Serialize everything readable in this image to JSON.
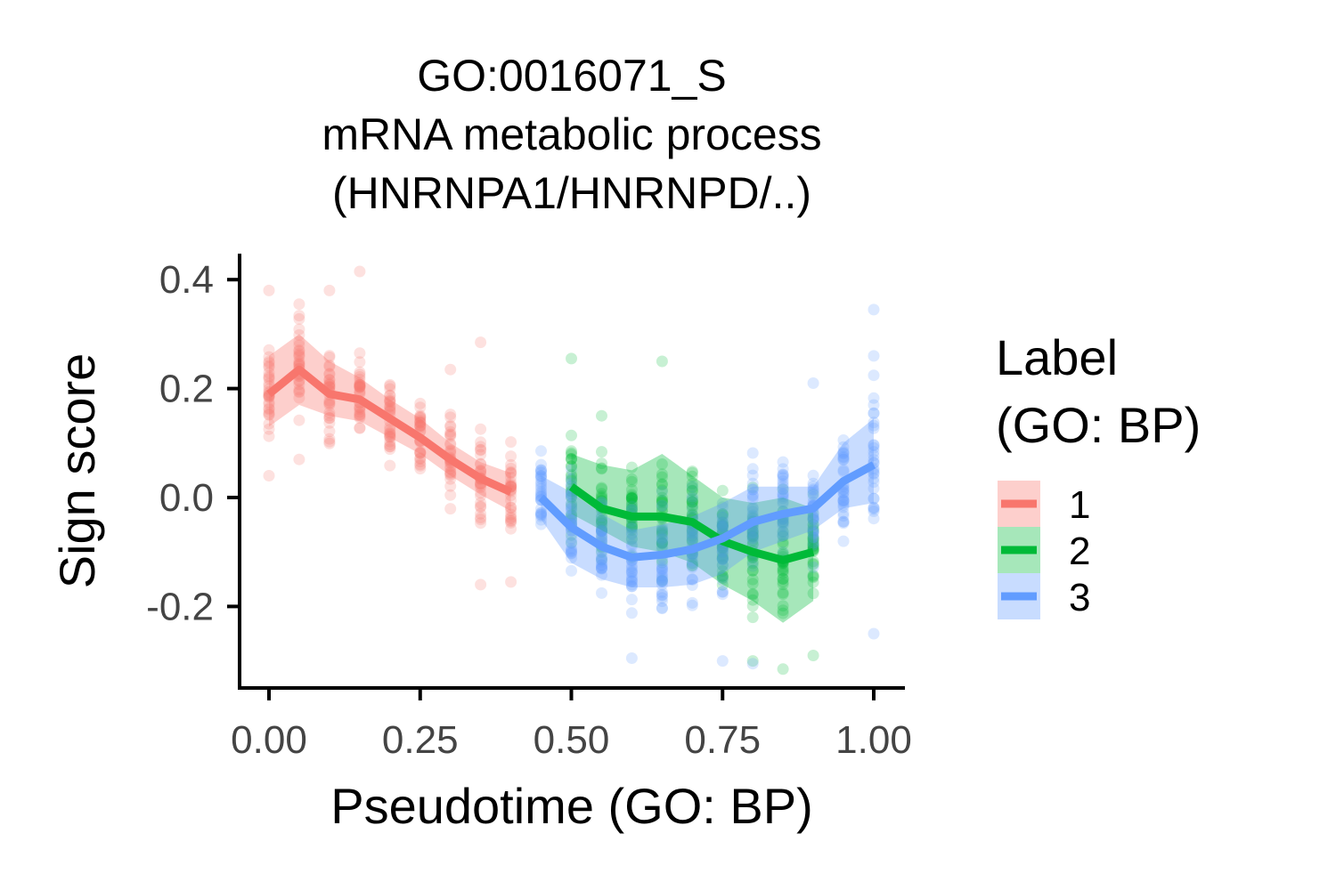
{
  "chart_data": {
    "type": "scatter",
    "title": [
      "GO:0016071_S",
      "mRNA metabolic process",
      "(HNRNPA1/HNRNPD/..)"
    ],
    "xlabel": "Pseudotime (GO: BP)",
    "ylabel": "Sign score",
    "xlim": [
      -0.05,
      1.05
    ],
    "ylim": [
      -0.35,
      0.45
    ],
    "x_ticks": [
      0.0,
      0.25,
      0.5,
      0.75,
      1.0
    ],
    "x_tick_labels": [
      "0.00",
      "0.25",
      "0.50",
      "0.75",
      "1.00"
    ],
    "y_ticks": [
      -0.2,
      0.0,
      0.2,
      0.4
    ],
    "y_tick_labels": [
      "-0.2",
      "0.0",
      "0.2",
      "0.4"
    ],
    "grid": false,
    "legend": {
      "title": [
        "Label",
        "(GO: BP)"
      ],
      "placement": "right",
      "entries": [
        "1",
        "2",
        "3"
      ]
    },
    "series": [
      {
        "name": "1",
        "color": "#F8766D",
        "x": [
          0.0,
          0.05,
          0.1,
          0.15,
          0.2,
          0.25,
          0.3,
          0.35,
          0.4
        ],
        "mean": [
          0.19,
          0.235,
          0.19,
          0.18,
          0.145,
          0.11,
          0.07,
          0.035,
          0.01
        ],
        "lower": [
          0.13,
          0.17,
          0.15,
          0.14,
          0.11,
          0.08,
          0.04,
          0.005,
          -0.025
        ],
        "upper": [
          0.26,
          0.3,
          0.25,
          0.22,
          0.18,
          0.145,
          0.1,
          0.065,
          0.045
        ],
        "spread": [
          0.09,
          0.08,
          0.07,
          0.07,
          0.07,
          0.07,
          0.08,
          0.09,
          0.08
        ],
        "extremes": [
          [
            0.0,
            0.38
          ],
          [
            0.0,
            0.04
          ],
          [
            0.05,
            0.355
          ],
          [
            0.05,
            0.07
          ],
          [
            0.15,
            0.415
          ],
          [
            0.1,
            0.38
          ],
          [
            0.35,
            0.285
          ],
          [
            0.35,
            -0.16
          ],
          [
            0.4,
            -0.155
          ],
          [
            0.3,
            0.235
          ]
        ]
      },
      {
        "name": "2",
        "color": "#00BA38",
        "x": [
          0.5,
          0.55,
          0.6,
          0.65,
          0.7,
          0.75,
          0.8,
          0.85,
          0.9
        ],
        "mean": [
          0.02,
          -0.02,
          -0.035,
          -0.035,
          -0.045,
          -0.08,
          -0.1,
          -0.115,
          -0.1
        ],
        "lower": [
          -0.03,
          -0.06,
          -0.09,
          -0.1,
          -0.12,
          -0.16,
          -0.19,
          -0.23,
          -0.19
        ],
        "upper": [
          0.08,
          0.06,
          0.05,
          0.08,
          0.04,
          0.0,
          -0.01,
          0.0,
          -0.02
        ],
        "spread": [
          0.08,
          0.09,
          0.09,
          0.1,
          0.1,
          0.1,
          0.1,
          0.1,
          0.1
        ],
        "extremes": [
          [
            0.5,
            0.255
          ],
          [
            0.65,
            0.25
          ],
          [
            0.85,
            -0.315
          ],
          [
            0.9,
            -0.29
          ],
          [
            0.55,
            0.15
          ],
          [
            0.8,
            -0.3
          ]
        ]
      },
      {
        "name": "3",
        "color": "#619CFF",
        "x": [
          0.45,
          0.5,
          0.55,
          0.6,
          0.65,
          0.7,
          0.75,
          0.8,
          0.85,
          0.9,
          0.95,
          1.0
        ],
        "mean": [
          0.0,
          -0.055,
          -0.09,
          -0.11,
          -0.105,
          -0.095,
          -0.075,
          -0.045,
          -0.03,
          -0.02,
          0.03,
          0.06
        ],
        "lower": [
          -0.04,
          -0.12,
          -0.15,
          -0.165,
          -0.165,
          -0.16,
          -0.14,
          -0.1,
          -0.08,
          -0.06,
          -0.02,
          -0.01
        ],
        "upper": [
          0.04,
          0.01,
          -0.03,
          -0.06,
          -0.05,
          -0.035,
          -0.01,
          0.02,
          0.02,
          0.02,
          0.1,
          0.145
        ],
        "spread": [
          0.07,
          0.09,
          0.09,
          0.1,
          0.1,
          0.1,
          0.1,
          0.1,
          0.09,
          0.1,
          0.1,
          0.12
        ],
        "extremes": [
          [
            1.0,
            0.345
          ],
          [
            1.0,
            0.26
          ],
          [
            0.6,
            -0.295
          ],
          [
            0.75,
            -0.3
          ],
          [
            0.8,
            -0.305
          ],
          [
            0.9,
            0.21
          ],
          [
            1.0,
            -0.25
          ]
        ]
      }
    ]
  }
}
